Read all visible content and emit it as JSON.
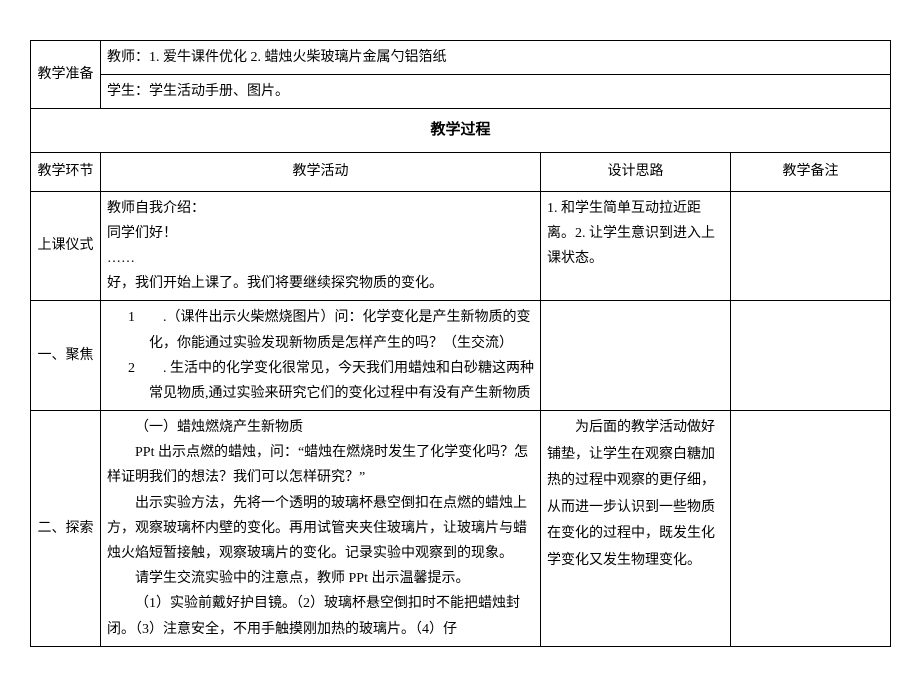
{
  "prep": {
    "label": "教学准备",
    "teacher": "教师：1. 爱牛课件优化 2. 蜡烛火柴玻璃片金属勺铝箔纸",
    "student": "学生：学生活动手册、图片。"
  },
  "process_header": "教学过程",
  "columns": {
    "stage": "教学环节",
    "activity": "教学活动",
    "rationale": "设计思路",
    "remark": "教学备注"
  },
  "rows": {
    "ceremony": {
      "label": "上课仪式",
      "activity_l1": "教师自我介绍：",
      "activity_l2": "同学们好！",
      "activity_l3": "……",
      "activity_l4": "好，我们开始上课了。我们将要继续探究物质的变化。",
      "rationale": "1. 和学生简单互动拉近距离。2. 让学生意识到进入上课状态。"
    },
    "focus": {
      "label": "一、聚焦",
      "item1": "1　　.（课件出示火柴燃烧图片）问：化学变化是产生新物质的变化，你能通过实验发现新物质是怎样产生的吗？（生交流）",
      "item2": "2　　. 生活中的化学变化很常见，今天我们用蜡烛和白砂糖这两种常见物质,通过实验来研究它们的变化过程中有没有产生新物质"
    },
    "explore": {
      "label": "二、探索",
      "p1": "（一）蜡烛燃烧产生新物质",
      "p2": "PPt 出示点燃的蜡烛，问：“蜡烛在燃烧时发生了化学变化吗？怎样证明我们的想法？我们可以怎样研究？”",
      "p3": "出示实验方法，先将一个透明的玻璃杯悬空倒扣在点燃的蜡烛上方，观察玻璃杯内壁的变化。再用试管夹夹住玻璃片，让玻璃片与蜡烛火焰短暂接触，观察玻璃片的变化。记录实验中观察到的现象。",
      "p4": "请学生交流实验中的注意点，教师 PPt 出示温馨提示。",
      "p5": "（1）实验前戴好护目镜。（2）玻璃杯悬空倒扣时不能把蜡烛封闭。（3）注意安全，不用手触摸刚加热的玻璃片。（4）仔",
      "rationale": "为后面的教学活动做好铺垫，让学生在观察白糖加热的过程中观察的更仔细，从而进一步认识到一些物质在变化的过程中，既发生化学变化又发生物理变化。"
    }
  }
}
